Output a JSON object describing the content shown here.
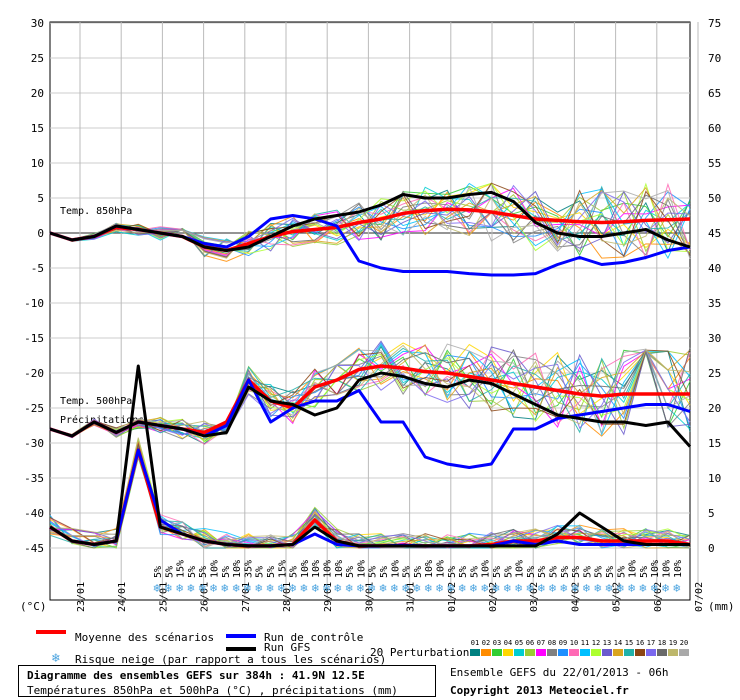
{
  "chart_data": {
    "type": "line",
    "title": "Diagramme des ensembles GEFS sur 384h : 41.9N 12.5E",
    "subtitle": "Températures 850hPa et 500hPa (°C) , précipitations (mm)",
    "y_left": {
      "label": "(°C)",
      "ticks": [
        30,
        25,
        20,
        15,
        10,
        5,
        0,
        -5,
        -10,
        -15,
        -20,
        -25,
        -30,
        -35,
        -40,
        -45
      ]
    },
    "y_right": {
      "label": "(mm)",
      "ticks": [
        75,
        70,
        65,
        60,
        55,
        50,
        45,
        40,
        35,
        30,
        25,
        20,
        15,
        10,
        5,
        0
      ]
    },
    "x_dates": [
      "23/01",
      "24/01",
      "25/01",
      "26/01",
      "27/01",
      "28/01",
      "29/01",
      "30/01",
      "31/01",
      "01/02",
      "02/02",
      "03/02",
      "04/02",
      "05/02",
      "06/02",
      "07/02"
    ],
    "annotations": [
      "Temp. 850hPa",
      "Temp. 500hPa",
      "Précipitations"
    ],
    "snow_risk": [
      "5%",
      "5%",
      "15%",
      "5%",
      "5%",
      "10%",
      "5%",
      "10%",
      "35%",
      "5%",
      "5%",
      "15%",
      "5%",
      "10%",
      "10%",
      "10%",
      "10%",
      "5%",
      "10%",
      "5%",
      "5%",
      "10%",
      "5%",
      "5%",
      "10%",
      "10%",
      "5%",
      "5%",
      "5%",
      "10%",
      "5%",
      "5%",
      "10%",
      "5%",
      "5%",
      "5%",
      "5%",
      "5%",
      "5%",
      "5%",
      "5%",
      "5%",
      "10%",
      "5%",
      "10%",
      "10%",
      "10%"
    ],
    "series": [
      {
        "name": "Moyenne des scénarios",
        "color": "#ff0000",
        "t850": [
          0,
          -1,
          -0.5,
          0.8,
          0.5,
          0,
          -0.5,
          -2,
          -2.5,
          -1.5,
          -0.5,
          0.2,
          0.5,
          0.8,
          1.5,
          2,
          2.8,
          3.2,
          3.4,
          3.3,
          3,
          2.5,
          2,
          1.8,
          1.6,
          1.5,
          1.6,
          1.8,
          1.9,
          2
        ],
        "t500": [
          -28,
          -29,
          -27,
          -28.5,
          -27,
          -27.5,
          -28,
          -28.5,
          -27,
          -21,
          -24,
          -25,
          -22,
          -21,
          -19.5,
          -19,
          -19.3,
          -19.8,
          -20,
          -20.5,
          -21,
          -21.5,
          -22,
          -22.5,
          -23,
          -23.3,
          -23,
          -23,
          -23,
          -23
        ],
        "precip": [
          3,
          1,
          0.5,
          1,
          14,
          3,
          2,
          1,
          0.5,
          0.3,
          0.3,
          0.5,
          4,
          1,
          0.3,
          0.3,
          0.4,
          0.3,
          0.3,
          0.3,
          0.5,
          1,
          1,
          1.5,
          1.5,
          1,
          1,
          1,
          1,
          0.5
        ]
      },
      {
        "name": "Run de contrôle",
        "color": "#0000ff",
        "t850": [
          0,
          -1,
          -0.5,
          1,
          0.5,
          0,
          -0.5,
          -1.5,
          -2,
          -0.5,
          2,
          2.5,
          2,
          1,
          -4,
          -5,
          -5.5,
          -5.5,
          -5.5,
          -5.8,
          -6,
          -6,
          -5.8,
          -4.5,
          -3.5,
          -4.5,
          -4.2,
          -3.5,
          -2.5,
          -2
        ],
        "t500": [
          -28,
          -29,
          -27,
          -28.5,
          -27,
          -27.5,
          -28,
          -29,
          -27.5,
          -21,
          -27,
          -25,
          -24,
          -24,
          -22.5,
          -27,
          -27,
          -32,
          -33,
          -33.5,
          -33,
          -28,
          -28,
          -26.5,
          -26,
          -25.5,
          -25,
          -24.5,
          -24.5,
          -25.5
        ],
        "precip": [
          3,
          1,
          0.5,
          1,
          14,
          4,
          2,
          1,
          0.5,
          0.3,
          0.3,
          0.5,
          2,
          0.5,
          0.3,
          0.3,
          0.4,
          0.3,
          0.3,
          0.3,
          0.3,
          1,
          0.5,
          1,
          0.5,
          0.5,
          0.5,
          0.5,
          0.5,
          0.5
        ]
      },
      {
        "name": "Run GFS",
        "color": "#000000",
        "t850": [
          0,
          -1,
          -0.5,
          1,
          0.5,
          0,
          -0.5,
          -2,
          -2.5,
          -2,
          -0.5,
          1,
          2,
          2.5,
          3,
          4,
          5.5,
          5,
          5,
          5.5,
          5.8,
          4.5,
          1.5,
          0,
          -0.5,
          -0.5,
          0,
          0.5,
          -1,
          -2
        ],
        "t500": [
          -28,
          -29,
          -27,
          -28.5,
          -27,
          -27.5,
          -28,
          -29,
          -28.5,
          -22,
          -24,
          -24.5,
          -26,
          -25,
          -21,
          -20,
          -20.5,
          -21.5,
          -22,
          -21,
          -21.5,
          -23,
          -24.5,
          -26,
          -26.5,
          -27,
          -27,
          -27.5,
          -27,
          -30.5
        ],
        "precip": [
          3,
          1,
          0.5,
          1,
          26,
          3,
          2,
          1,
          0.5,
          0.3,
          0.3,
          0.5,
          3,
          1,
          0.3,
          0.3,
          0.3,
          0.3,
          0.3,
          0.3,
          0.3,
          0.3,
          0.3,
          2,
          5,
          3,
          1,
          0.5,
          0.5,
          0.5
        ]
      }
    ]
  },
  "legend": {
    "mean_label": "Moyenne des scénarios",
    "control_label": "Run de contrôle",
    "gfs_label": "Run GFS",
    "snow_label": "Risque neige (par rapport a tous les scénarios)",
    "perturb_label": "20 Perturbations",
    "perturb_numbers": [
      "01",
      "02",
      "03",
      "04",
      "05",
      "06",
      "07",
      "08",
      "09",
      "10",
      "11",
      "12",
      "13",
      "14",
      "15",
      "16",
      "17",
      "18",
      "19",
      "20"
    ],
    "perturb_colors": [
      "#008080",
      "#ff8c00",
      "#32cd32",
      "#ffd700",
      "#00ced1",
      "#9acd32",
      "#ff00ff",
      "#808080",
      "#1e90ff",
      "#ff69b4",
      "#00bfff",
      "#adff2f",
      "#6a5acd",
      "#daa520",
      "#20b2aa",
      "#8b4513",
      "#7b68ee",
      "#696969",
      "#bdb76b",
      "#a9a9a9"
    ],
    "snow_icon": "snowflake-icon"
  },
  "footer": {
    "title": "Diagramme des ensembles GEFS sur 384h : 41.9N 12.5E",
    "subtitle": "Températures 850hPa et 500hPa (°C) , précipitations (mm)",
    "run_info": "Ensemble GEFS du 22/01/2013 - 06h",
    "copyright": "Copyright 2013 Meteociel.fr"
  }
}
